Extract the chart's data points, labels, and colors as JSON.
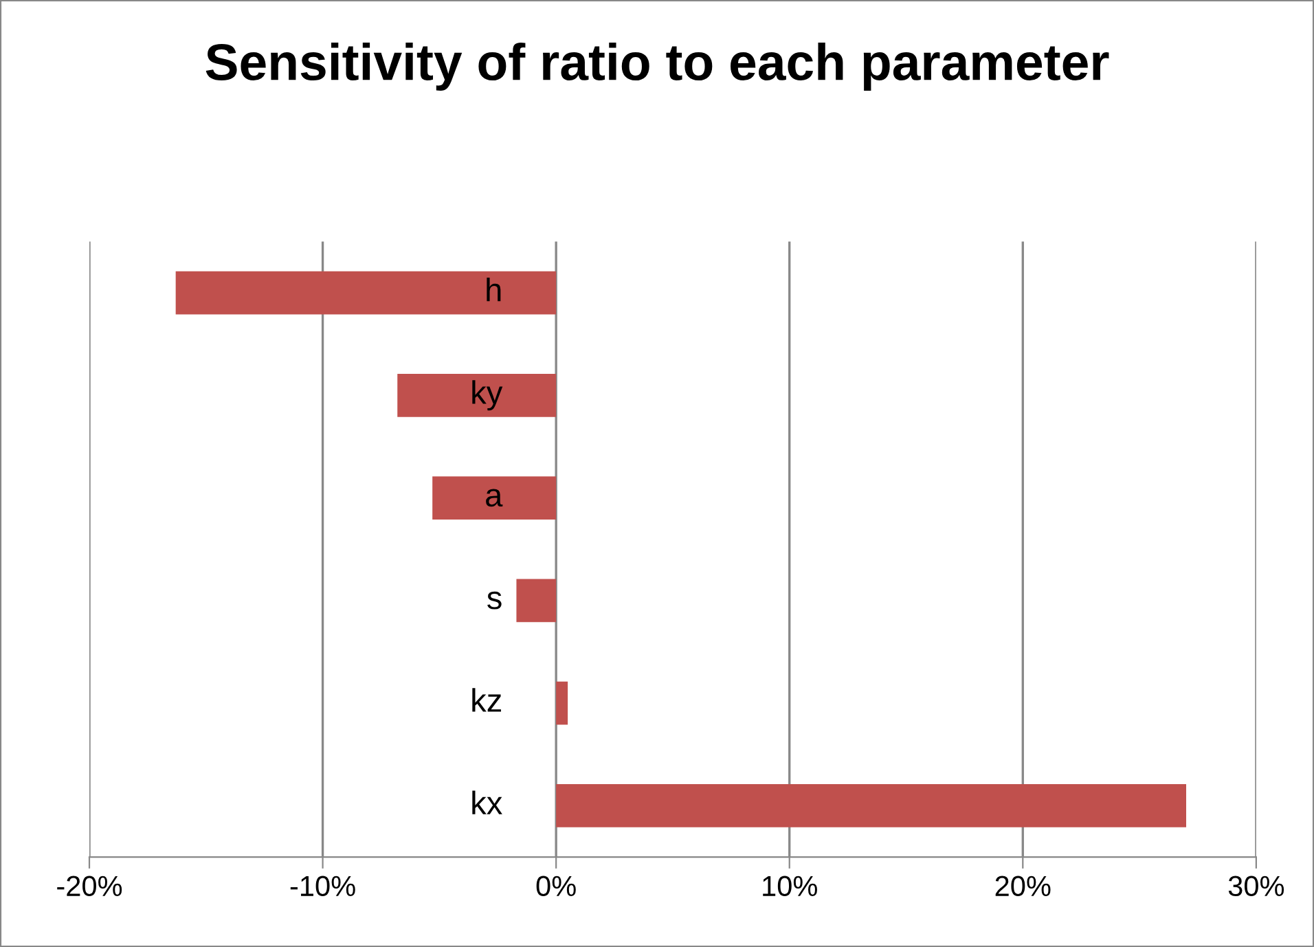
{
  "chart_data": {
    "type": "bar",
    "orientation": "horizontal",
    "title": "Sensitivity of ratio to each parameter",
    "categories": [
      "h",
      "ky",
      "a",
      "s",
      "kz",
      "kx"
    ],
    "values": [
      -16.3,
      -6.8,
      -5.3,
      -1.7,
      0.5,
      27.0
    ],
    "color": "#c0504d",
    "xlim": [
      -20,
      30
    ],
    "xticks": [
      {
        "value": -20,
        "label": "-20%"
      },
      {
        "value": -10,
        "label": "-10%"
      },
      {
        "value": 0,
        "label": "0%"
      },
      {
        "value": 10,
        "label": "10%"
      },
      {
        "value": 20,
        "label": "20%"
      },
      {
        "value": 30,
        "label": "30%"
      }
    ],
    "grid": "x",
    "legend": false
  }
}
